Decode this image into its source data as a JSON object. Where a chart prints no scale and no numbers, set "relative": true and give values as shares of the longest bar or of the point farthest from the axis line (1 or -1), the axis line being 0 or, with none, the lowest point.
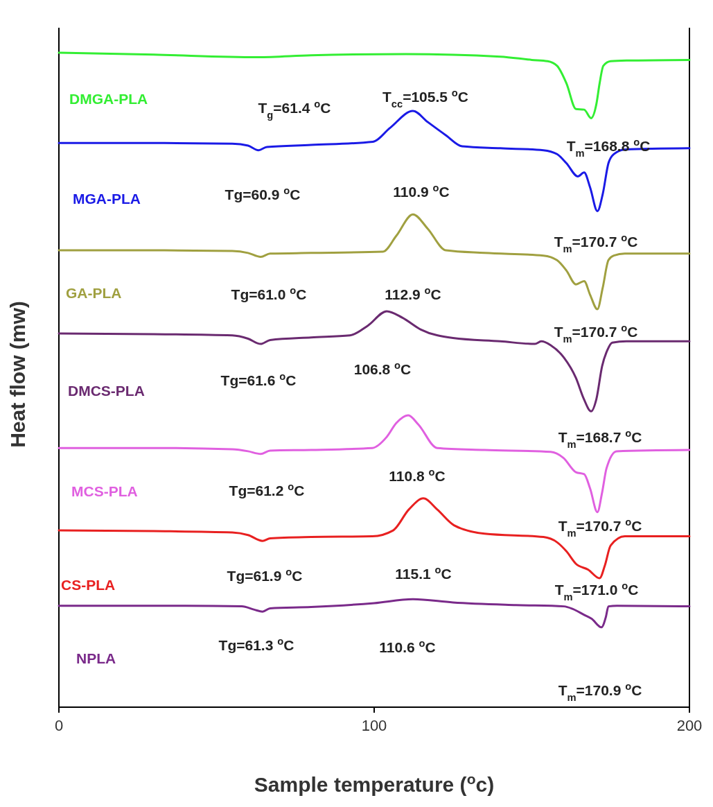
{
  "chart_data": {
    "type": "line",
    "relative": true,
    "xlabel": "Sample temperature ($^{o}$c)",
    "ylabel": "Heat flow (mw)",
    "xlim": [
      0,
      200
    ],
    "xticks": [
      0,
      100,
      200
    ],
    "series": [
      {
        "name": "DMGA-PLA",
        "color": "#33ee33",
        "x": [
          0,
          30,
          63,
          80,
          110,
          140,
          150,
          155,
          158,
          161,
          164,
          166.6,
          168.8,
          170.5,
          171.5,
          172.7,
          175,
          180,
          200
        ],
        "values": [
          1.0,
          0.997,
          0.993,
          0.996,
          0.998,
          0.994,
          0.989,
          0.987,
          0.98,
          0.953,
          0.914,
          0.913,
          0.9,
          0.922,
          0.953,
          0.98,
          0.987,
          0.988,
          0.989
        ]
      },
      {
        "name": "MGA-PLA",
        "color": "#1a1ae6",
        "x": [
          0,
          30,
          55,
          60,
          63.3,
          66,
          80,
          99.6,
          105,
          112.3,
          117,
          122.7,
          127.9,
          140,
          153.7,
          158,
          161,
          164.6,
          166.6,
          168.5,
          170.8,
          172.5,
          174.3,
          176,
          179.5,
          200
        ],
        "values": [
          0.862,
          0.862,
          0.861,
          0.858,
          0.851,
          0.856,
          0.859,
          0.864,
          0.885,
          0.911,
          0.894,
          0.874,
          0.857,
          0.854,
          0.851,
          0.845,
          0.831,
          0.811,
          0.817,
          0.794,
          0.758,
          0.784,
          0.831,
          0.845,
          0.852,
          0.854
        ]
      },
      {
        "name": "GA-PLA",
        "color": "#a0a040",
        "x": [
          0,
          30,
          55,
          60,
          64,
          67,
          80,
          102.8,
          107,
          112.3,
          117,
          122.7,
          135,
          153.7,
          158,
          161,
          164,
          166.6,
          168.5,
          170.8,
          172.5,
          174.3,
          176,
          179.5,
          200
        ],
        "values": [
          0.698,
          0.698,
          0.697,
          0.694,
          0.688,
          0.693,
          0.694,
          0.696,
          0.72,
          0.753,
          0.731,
          0.698,
          0.694,
          0.69,
          0.683,
          0.667,
          0.646,
          0.651,
          0.63,
          0.608,
          0.641,
          0.683,
          0.69,
          0.693,
          0.693
        ]
      },
      {
        "name": "DMCS-PLA",
        "color": "#6a2a70",
        "x": [
          0,
          30,
          55,
          60,
          64,
          67,
          80,
          92.3,
          98,
          104,
          109,
          114.8,
          125,
          140,
          151,
          153,
          156,
          160.2,
          164,
          166.5,
          168.8,
          170.5,
          172.3,
          174,
          175.5,
          180,
          200
        ],
        "values": [
          0.571,
          0.57,
          0.568,
          0.563,
          0.555,
          0.561,
          0.565,
          0.568,
          0.583,
          0.605,
          0.595,
          0.577,
          0.564,
          0.559,
          0.555,
          0.559,
          0.553,
          0.534,
          0.503,
          0.471,
          0.452,
          0.471,
          0.521,
          0.546,
          0.557,
          0.559,
          0.559
        ]
      },
      {
        "name": "MCS-PLA",
        "color": "#e060e0",
        "x": [
          0,
          30,
          55,
          60,
          64,
          67,
          80,
          99.4,
          104,
          107,
          110.8,
          114,
          120,
          135,
          156,
          160,
          164,
          166.6,
          168.5,
          170.8,
          172.3,
          173.7,
          176.9,
          200
        ],
        "values": [
          0.396,
          0.396,
          0.394,
          0.391,
          0.387,
          0.392,
          0.393,
          0.396,
          0.413,
          0.434,
          0.446,
          0.432,
          0.396,
          0.393,
          0.39,
          0.381,
          0.359,
          0.356,
          0.334,
          0.298,
          0.328,
          0.365,
          0.391,
          0.393
        ]
      },
      {
        "name": "CS-PLA",
        "color": "#e82020",
        "x": [
          0,
          30,
          55,
          60,
          64.6,
          67,
          80,
          99.4,
          106,
          111,
          115.6,
          120,
          125.3,
          135,
          153.7,
          158,
          161,
          164,
          167.9,
          171.5,
          173.2,
          175,
          179.5,
          200
        ],
        "values": [
          0.27,
          0.269,
          0.267,
          0.263,
          0.254,
          0.258,
          0.26,
          0.261,
          0.27,
          0.302,
          0.319,
          0.302,
          0.278,
          0.265,
          0.26,
          0.252,
          0.238,
          0.219,
          0.21,
          0.197,
          0.217,
          0.247,
          0.261,
          0.261
        ]
      },
      {
        "name": "NPLA",
        "color": "#7a2a8a",
        "x": [
          0,
          40,
          58,
          62,
          64.6,
          67,
          80,
          100,
          112.3,
          125,
          145,
          160.2,
          163,
          166.6,
          169,
          172.1,
          173.5,
          174.3,
          177,
          200
        ],
        "values": [
          0.155,
          0.155,
          0.154,
          0.149,
          0.146,
          0.151,
          0.153,
          0.159,
          0.165,
          0.16,
          0.156,
          0.154,
          0.15,
          0.141,
          0.135,
          0.122,
          0.138,
          0.154,
          0.155,
          0.154
        ]
      }
    ],
    "annotations": [
      "T$_{g}$=61.4 $^{o}$C",
      "T$_{cc}$=105.5 $^{o}$C",
      "T$_{m}$=168.8 $^{o}$C",
      "Tg=60.9 $^{o}$C",
      "110.9 $^{o}$C",
      "T$_{m}$=170.7 $^{o}$C",
      "Tg=61.0 $^{o}$C",
      "112.9 $^{o}$C",
      "T$_{m}$=170.7 $^{o}$C",
      "Tg=61.6 $^{o}$C",
      "106.8 $^{o}$C",
      "T$_{m}$=168.7 $^{o}$C",
      "Tg=61.2 $^{o}$C",
      "110.8 $^{o}$C",
      "T$_{m}$=170.7 $^{o}$C",
      "Tg=61.9 $^{o}$C",
      "115.1 $^{o}$C",
      "T$_{m}$=171.0 $^{o}$C",
      "Tg=61.3 $^{o}$C",
      "110.6 $^{o}$C",
      "T$_{m}$=170.9 $^{o}$C"
    ]
  }
}
